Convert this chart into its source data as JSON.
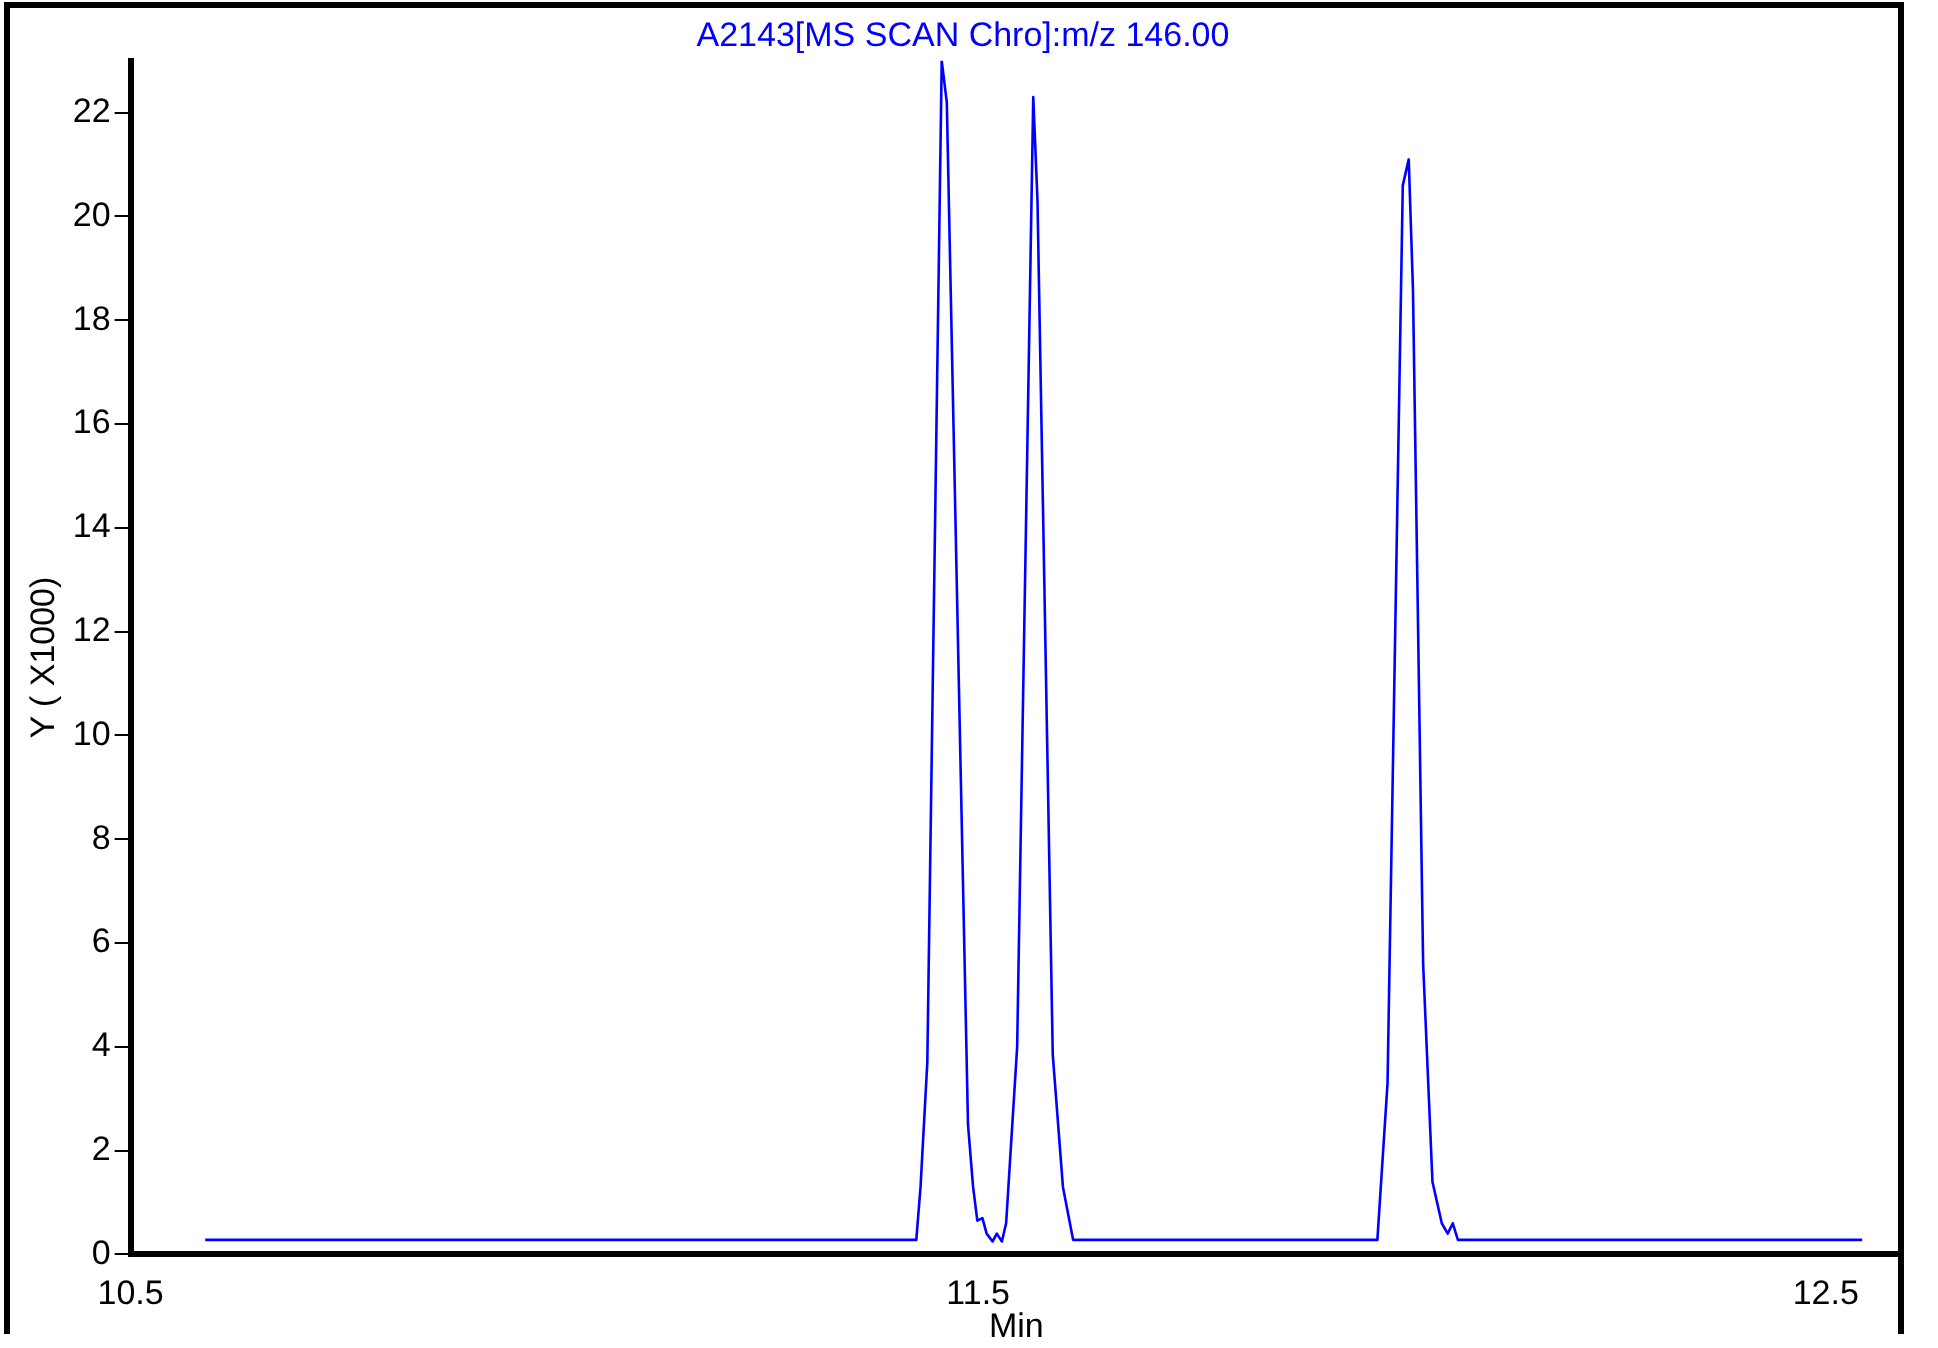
{
  "chart_data": {
    "type": "line",
    "title": "A2143[MS SCAN Chro]:m/z 146.00",
    "xlabel": "Min",
    "ylabel": "Y ( X1000)",
    "x": [
      10.588,
      11.427,
      11.432,
      11.44,
      11.457,
      11.463,
      11.488,
      11.494,
      11.499,
      11.505,
      11.51,
      11.517,
      11.522,
      11.528,
      11.533,
      11.546,
      11.565,
      11.57,
      11.588,
      11.6,
      11.612,
      11.971,
      11.983,
      12.001,
      12.008,
      12.013,
      12.025,
      12.036,
      12.047,
      12.054,
      12.06,
      12.066,
      12.543
    ],
    "series": [
      {
        "color": "#0000ff",
        "values": [
          0.28,
          0.28,
          1.3,
          3.7,
          23.0,
          22.2,
          2.5,
          1.3,
          0.65,
          0.7,
          0.4,
          0.25,
          0.4,
          0.25,
          0.6,
          4.0,
          22.3,
          20.3,
          3.85,
          1.3,
          0.28,
          0.28,
          3.3,
          20.6,
          21.1,
          18.6,
          5.6,
          1.4,
          0.6,
          0.4,
          0.6,
          0.28,
          0.28
        ]
      }
    ],
    "xlim": [
      10.5,
      12.59
    ],
    "ylim": [
      0,
      23
    ],
    "xticks": [
      10.5,
      11.5,
      12.5
    ],
    "yticks": [
      0,
      2,
      4,
      6,
      8,
      10,
      12,
      14,
      16,
      18,
      20,
      22
    ],
    "grid": false,
    "legend": false,
    "marker": "none",
    "line_style": "solid"
  }
}
